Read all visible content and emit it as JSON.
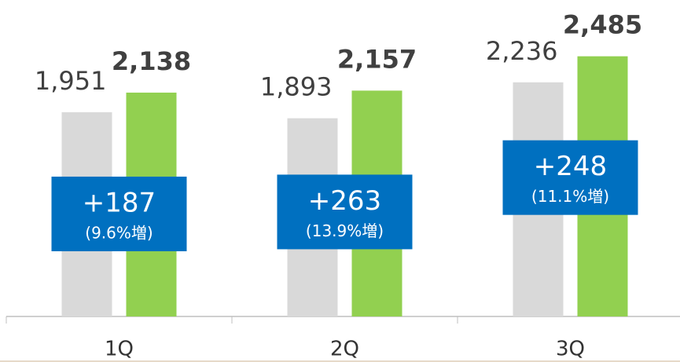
{
  "chart_data": {
    "type": "bar",
    "categories": [
      "1Q",
      "2Q",
      "3Q"
    ],
    "series": [
      {
        "color": "#d9d9d9",
        "values": [
          1951,
          1893,
          2236
        ],
        "value_labels": [
          "1,951",
          "1,893",
          "2,236"
        ]
      },
      {
        "color": "#92d050",
        "values": [
          2138,
          2157,
          2485
        ],
        "value_labels": [
          "2,138",
          "2,157",
          "2,485"
        ]
      }
    ],
    "annotations": [
      {
        "text": "+187",
        "subtext": "(9.6%増)"
      },
      {
        "text": "+263",
        "subtext": "(13.9%増)"
      },
      {
        "text": "+248",
        "subtext": "(11.1%増)"
      }
    ],
    "annotation_color": "#0070c0",
    "ylim": [
      0,
      3000
    ]
  }
}
